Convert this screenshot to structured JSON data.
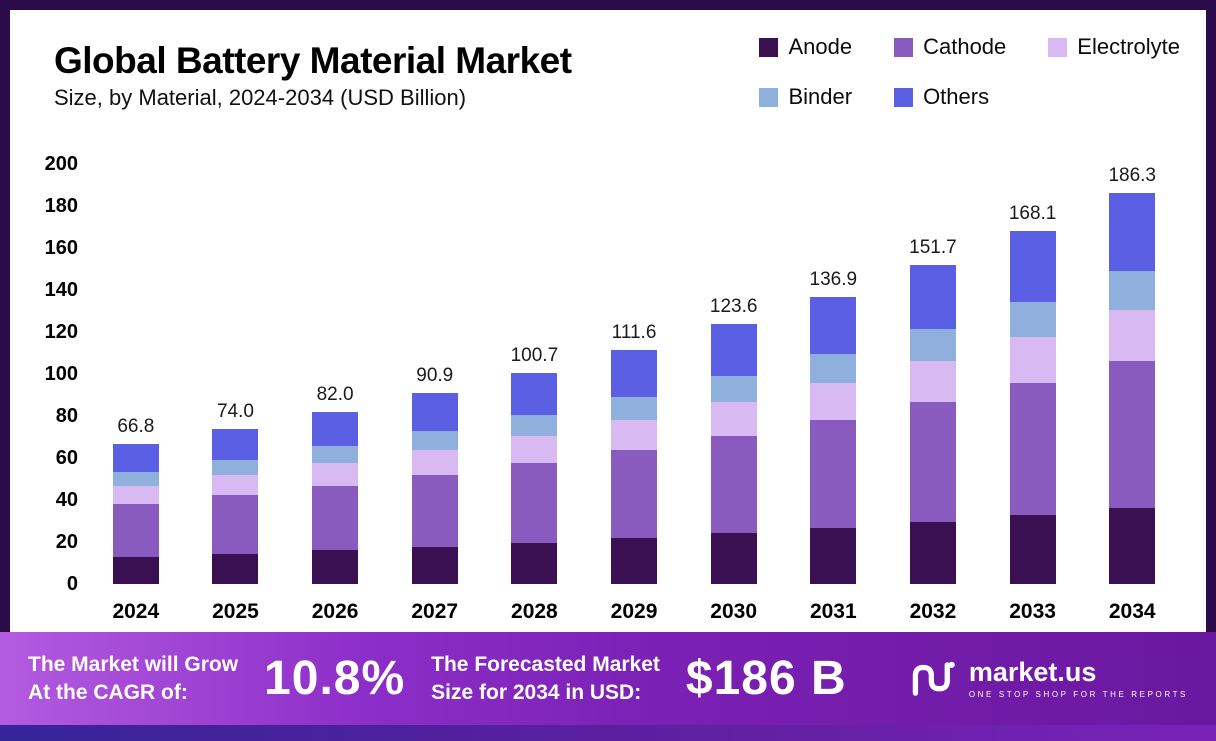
{
  "title": "Global Battery Material Market",
  "subtitle": "Size, by Material, 2024-2034 (USD Billion)",
  "chart_data": {
    "type": "bar",
    "stacked": true,
    "title": "Global Battery Material Market Size, by Material, 2024-2034 (USD Billion)",
    "categories": [
      "2024",
      "2025",
      "2026",
      "2027",
      "2028",
      "2029",
      "2030",
      "2031",
      "2032",
      "2033",
      "2034"
    ],
    "series": [
      {
        "name": "Anode",
        "color": "#3a1053",
        "values": [
          13.0,
          14.4,
          16.0,
          17.7,
          19.6,
          21.8,
          24.1,
          26.7,
          29.6,
          32.8,
          36.3
        ]
      },
      {
        "name": "Cathode",
        "color": "#8a5bbf",
        "values": [
          25.1,
          27.8,
          30.7,
          34.1,
          37.8,
          41.8,
          46.3,
          51.3,
          56.9,
          63.0,
          69.9
        ]
      },
      {
        "name": "Electrolyte",
        "color": "#d9b9f2",
        "values": [
          8.7,
          9.6,
          10.7,
          11.8,
          13.1,
          14.5,
          16.1,
          17.8,
          19.7,
          21.9,
          24.2
        ]
      },
      {
        "name": "Binder",
        "color": "#8fb0dc",
        "values": [
          6.7,
          7.4,
          8.2,
          9.1,
          10.1,
          11.2,
          12.4,
          13.7,
          15.2,
          16.8,
          18.6
        ]
      },
      {
        "name": "Others",
        "color": "#5b5fe3",
        "values": [
          13.3,
          14.8,
          16.4,
          18.2,
          20.1,
          22.3,
          24.7,
          27.4,
          30.3,
          33.6,
          37.3
        ]
      }
    ],
    "totals": [
      "66.8",
      "74.0",
      "82.0",
      "90.9",
      "100.7",
      "111.6",
      "123.6",
      "136.9",
      "151.7",
      "168.1",
      "186.3"
    ],
    "ylim": [
      0,
      200
    ],
    "ytick_step": 20,
    "yticks": [
      0,
      20,
      40,
      60,
      80,
      100,
      120,
      140,
      160,
      180,
      200
    ],
    "legend_position": "top-right",
    "grid": false
  },
  "banner": {
    "cagr": {
      "line1": "The Market will Grow",
      "line2": "At the CAGR of:",
      "value": "10.8%"
    },
    "forecast": {
      "line1": "The Forecasted Market",
      "line2": "Size for 2034 in USD:",
      "value": "$186 B"
    },
    "brand": {
      "name": "market.us",
      "tagline": "ONE STOP SHOP FOR THE REPORTS"
    }
  },
  "colors": {
    "frame": "#2c0b4a",
    "banner_gradient_start": "#b35be0",
    "banner_gradient_end": "#6a18a0"
  }
}
